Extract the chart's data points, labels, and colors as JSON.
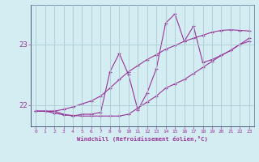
{
  "xlabel": "Windchill (Refroidissement éolien,°C)",
  "bg_color": "#d4edf2",
  "grid_color": "#aaccd4",
  "line_color": "#993399",
  "xlim": [
    -0.5,
    23.5
  ],
  "ylim": [
    21.65,
    23.65
  ],
  "yticks": [
    22,
    23
  ],
  "xticks": [
    0,
    1,
    2,
    3,
    4,
    5,
    6,
    7,
    8,
    9,
    10,
    11,
    12,
    13,
    14,
    15,
    16,
    17,
    18,
    19,
    20,
    21,
    22,
    23
  ],
  "series1_x": [
    0,
    1,
    2,
    3,
    4,
    5,
    6,
    7,
    8,
    9,
    10,
    11,
    12,
    13,
    14,
    15,
    16,
    17,
    18,
    19,
    20,
    21,
    22,
    23
  ],
  "series1_y": [
    21.9,
    21.9,
    21.9,
    21.93,
    21.97,
    22.02,
    22.07,
    22.15,
    22.28,
    22.42,
    22.55,
    22.65,
    22.75,
    22.83,
    22.92,
    22.98,
    23.05,
    23.1,
    23.15,
    23.2,
    23.23,
    23.24,
    23.23,
    23.22
  ],
  "series2_x": [
    0,
    1,
    2,
    3,
    4,
    5,
    6,
    7,
    8,
    9,
    10,
    11,
    12,
    13,
    14,
    15,
    16,
    17,
    18,
    19,
    20,
    21,
    22,
    23
  ],
  "series2_y": [
    21.9,
    21.9,
    21.87,
    21.84,
    21.83,
    21.82,
    21.82,
    21.82,
    21.82,
    21.82,
    21.85,
    21.95,
    22.05,
    22.15,
    22.28,
    22.35,
    22.42,
    22.52,
    22.62,
    22.72,
    22.82,
    22.9,
    23.0,
    23.05
  ],
  "series3_x": [
    0,
    1,
    2,
    3,
    4,
    5,
    6,
    7,
    8,
    9,
    10,
    11,
    12,
    13,
    14,
    15,
    16,
    17,
    18,
    19,
    20,
    21,
    22,
    23
  ],
  "series3_y": [
    21.9,
    21.9,
    21.9,
    21.85,
    21.82,
    21.85,
    21.85,
    21.88,
    22.55,
    22.85,
    22.5,
    21.92,
    22.2,
    22.6,
    23.35,
    23.5,
    23.05,
    23.3,
    22.7,
    22.75,
    22.82,
    22.9,
    23.0,
    23.1
  ]
}
